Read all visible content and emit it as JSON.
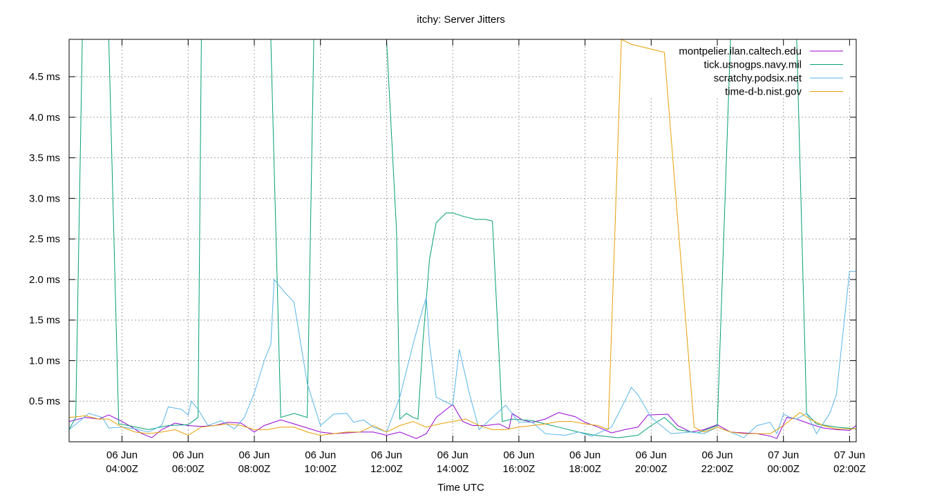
{
  "chart_data": {
    "type": "line",
    "title": "itchy: Server Jitters",
    "xlabel": "Time UTC",
    "ylabel": "",
    "x_unit": "hours (06 Jun 04:00Z = 4)",
    "xlim": [
      2.4,
      26.2
    ],
    "ylim": [
      0.0,
      4.96
    ],
    "y_ticks": [
      {
        "value": 0.5,
        "label": "0.5 ms"
      },
      {
        "value": 1.0,
        "label": "1.0 ms"
      },
      {
        "value": 1.5,
        "label": "1.5 ms"
      },
      {
        "value": 2.0,
        "label": "2.0 ms"
      },
      {
        "value": 2.5,
        "label": "2.5 ms"
      },
      {
        "value": 3.0,
        "label": "3.0 ms"
      },
      {
        "value": 3.5,
        "label": "3.5 ms"
      },
      {
        "value": 4.0,
        "label": "4.0 ms"
      },
      {
        "value": 4.5,
        "label": "4.5 ms"
      }
    ],
    "x_ticks": [
      {
        "value": 4,
        "line1": "06 Jun",
        "line2": "04:00Z"
      },
      {
        "value": 6,
        "line1": "06 Jun",
        "line2": "06:00Z"
      },
      {
        "value": 8,
        "line1": "06 Jun",
        "line2": "08:00Z"
      },
      {
        "value": 10,
        "line1": "06 Jun",
        "line2": "10:00Z"
      },
      {
        "value": 12,
        "line1": "06 Jun",
        "line2": "12:00Z"
      },
      {
        "value": 14,
        "line1": "06 Jun",
        "line2": "14:00Z"
      },
      {
        "value": 16,
        "line1": "06 Jun",
        "line2": "16:00Z"
      },
      {
        "value": 18,
        "line1": "06 Jun",
        "line2": "18:00Z"
      },
      {
        "value": 20,
        "line1": "06 Jun",
        "line2": "20:00Z"
      },
      {
        "value": 22,
        "line1": "06 Jun",
        "line2": "22:00Z"
      },
      {
        "value": 24,
        "line1": "07 Jun",
        "line2": "00:00Z"
      },
      {
        "value": 26,
        "line1": "07 Jun",
        "line2": "02:00Z"
      }
    ],
    "grid": true,
    "legend_position": "top-right",
    "series": [
      {
        "name": "montpelier.ilan.caltech.edu",
        "color": "#9400d3",
        "points": [
          [
            2.4,
            0.25
          ],
          [
            2.9,
            0.3
          ],
          [
            3.3,
            0.28
          ],
          [
            3.6,
            0.33
          ],
          [
            4.0,
            0.25
          ],
          [
            4.3,
            0.18
          ],
          [
            4.6,
            0.1
          ],
          [
            4.9,
            0.05
          ],
          [
            5.2,
            0.15
          ],
          [
            5.6,
            0.23
          ],
          [
            6.0,
            0.2
          ],
          [
            6.4,
            0.19
          ],
          [
            6.8,
            0.2
          ],
          [
            7.2,
            0.24
          ],
          [
            7.6,
            0.23
          ],
          [
            8.0,
            0.12
          ],
          [
            8.3,
            0.2
          ],
          [
            8.8,
            0.27
          ],
          [
            9.2,
            0.22
          ],
          [
            9.6,
            0.17
          ],
          [
            10.0,
            0.12
          ],
          [
            10.4,
            0.1
          ],
          [
            10.8,
            0.11
          ],
          [
            11.2,
            0.12
          ],
          [
            11.6,
            0.12
          ],
          [
            12.0,
            0.08
          ],
          [
            12.4,
            0.12
          ],
          [
            12.9,
            0.04
          ],
          [
            13.2,
            0.1
          ],
          [
            13.5,
            0.3
          ],
          [
            14.0,
            0.46
          ],
          [
            14.3,
            0.25
          ],
          [
            14.6,
            0.2
          ],
          [
            15.0,
            0.2
          ],
          [
            15.4,
            0.22
          ],
          [
            15.7,
            0.16
          ],
          [
            15.8,
            0.35
          ],
          [
            16.1,
            0.27
          ],
          [
            16.4,
            0.24
          ],
          [
            16.8,
            0.28
          ],
          [
            17.2,
            0.36
          ],
          [
            17.7,
            0.31
          ],
          [
            18.0,
            0.24
          ],
          [
            18.4,
            0.18
          ],
          [
            18.8,
            0.11
          ],
          [
            19.2,
            0.15
          ],
          [
            19.6,
            0.18
          ],
          [
            19.9,
            0.33
          ],
          [
            20.5,
            0.34
          ],
          [
            20.8,
            0.2
          ],
          [
            21.2,
            0.12
          ],
          [
            21.6,
            0.15
          ],
          [
            22.0,
            0.21
          ],
          [
            22.4,
            0.12
          ],
          [
            22.8,
            0.11
          ],
          [
            23.2,
            0.1
          ],
          [
            23.6,
            0.07
          ],
          [
            23.8,
            0.04
          ],
          [
            24.1,
            0.3
          ],
          [
            24.4,
            0.28
          ],
          [
            24.8,
            0.22
          ],
          [
            25.2,
            0.17
          ],
          [
            25.6,
            0.15
          ],
          [
            26.0,
            0.14
          ],
          [
            26.2,
            0.2
          ]
        ]
      },
      {
        "name": "tick.usnogps.navy.mil",
        "color": "#009e73",
        "points": [
          [
            2.4,
            0.15
          ],
          [
            2.6,
            0.3
          ],
          [
            2.8,
            4.96
          ],
          [
            3.6,
            4.96
          ],
          [
            3.9,
            0.22
          ],
          [
            4.2,
            0.2
          ],
          [
            4.8,
            0.15
          ],
          [
            5.4,
            0.2
          ],
          [
            6.0,
            0.21
          ],
          [
            6.3,
            0.3
          ],
          [
            6.4,
            4.96
          ],
          [
            8.5,
            4.96
          ],
          [
            8.8,
            0.3
          ],
          [
            9.2,
            0.35
          ],
          [
            9.6,
            0.3
          ],
          [
            9.8,
            4.96
          ],
          [
            12.0,
            4.96
          ],
          [
            12.3,
            2.6
          ],
          [
            12.4,
            0.28
          ],
          [
            12.6,
            0.35
          ],
          [
            12.8,
            0.3
          ],
          [
            12.95,
            0.28
          ],
          [
            13.1,
            1.25
          ],
          [
            13.3,
            2.25
          ],
          [
            13.5,
            2.7
          ],
          [
            13.8,
            2.82
          ],
          [
            14.0,
            2.82
          ],
          [
            14.3,
            2.78
          ],
          [
            14.7,
            2.74
          ],
          [
            15.0,
            2.74
          ],
          [
            15.2,
            2.72
          ],
          [
            15.5,
            0.25
          ],
          [
            15.8,
            0.28
          ],
          [
            16.4,
            0.26
          ],
          [
            16.8,
            0.22
          ],
          [
            17.2,
            0.18
          ],
          [
            17.8,
            0.12
          ],
          [
            18.3,
            0.08
          ],
          [
            19.0,
            0.05
          ],
          [
            19.6,
            0.08
          ],
          [
            20.0,
            0.2
          ],
          [
            20.4,
            0.3
          ],
          [
            20.8,
            0.15
          ],
          [
            21.4,
            0.11
          ],
          [
            22.0,
            0.2
          ],
          [
            22.4,
            4.96
          ],
          [
            24.4,
            4.96
          ],
          [
            24.7,
            0.35
          ],
          [
            25.0,
            0.22
          ],
          [
            25.6,
            0.18
          ],
          [
            26.2,
            0.16
          ]
        ]
      },
      {
        "name": "scratchy.podsix.net",
        "color": "#56b4e9",
        "points": [
          [
            2.4,
            0.15
          ],
          [
            2.7,
            0.25
          ],
          [
            3.0,
            0.35
          ],
          [
            3.4,
            0.3
          ],
          [
            3.6,
            0.17
          ],
          [
            4.0,
            0.18
          ],
          [
            4.4,
            0.16
          ],
          [
            4.8,
            0.12
          ],
          [
            5.2,
            0.2
          ],
          [
            5.4,
            0.43
          ],
          [
            5.8,
            0.4
          ],
          [
            6.0,
            0.33
          ],
          [
            6.1,
            0.5
          ],
          [
            6.3,
            0.4
          ],
          [
            6.6,
            0.2
          ],
          [
            7.0,
            0.26
          ],
          [
            7.4,
            0.16
          ],
          [
            7.7,
            0.3
          ],
          [
            8.0,
            0.6
          ],
          [
            8.3,
            1.0
          ],
          [
            8.5,
            1.2
          ],
          [
            8.6,
            2.0
          ],
          [
            8.9,
            1.85
          ],
          [
            9.2,
            1.72
          ],
          [
            9.6,
            0.72
          ],
          [
            10.0,
            0.2
          ],
          [
            10.4,
            0.34
          ],
          [
            10.8,
            0.35
          ],
          [
            11.0,
            0.24
          ],
          [
            11.3,
            0.27
          ],
          [
            11.6,
            0.18
          ],
          [
            12.0,
            0.12
          ],
          [
            12.4,
            0.55
          ],
          [
            12.8,
            1.2
          ],
          [
            13.1,
            1.65
          ],
          [
            13.2,
            1.78
          ],
          [
            13.3,
            1.2
          ],
          [
            13.5,
            0.55
          ],
          [
            14.0,
            0.45
          ],
          [
            14.2,
            1.14
          ],
          [
            14.5,
            0.6
          ],
          [
            14.8,
            0.15
          ],
          [
            15.2,
            0.3
          ],
          [
            15.6,
            0.45
          ],
          [
            16.0,
            0.24
          ],
          [
            16.4,
            0.24
          ],
          [
            16.8,
            0.1
          ],
          [
            17.4,
            0.08
          ],
          [
            17.8,
            0.12
          ],
          [
            18.2,
            0.07
          ],
          [
            18.8,
            0.18
          ],
          [
            19.2,
            0.5
          ],
          [
            19.4,
            0.67
          ],
          [
            19.6,
            0.58
          ],
          [
            20.0,
            0.3
          ],
          [
            20.6,
            0.1
          ],
          [
            21.2,
            0.12
          ],
          [
            21.6,
            0.1
          ],
          [
            22.0,
            0.18
          ],
          [
            22.4,
            0.12
          ],
          [
            22.8,
            0.05
          ],
          [
            23.2,
            0.2
          ],
          [
            23.6,
            0.24
          ],
          [
            23.8,
            0.1
          ],
          [
            24.0,
            0.34
          ],
          [
            24.2,
            0.3
          ],
          [
            24.4,
            0.28
          ],
          [
            24.7,
            0.35
          ],
          [
            25.0,
            0.1
          ],
          [
            25.4,
            0.35
          ],
          [
            25.6,
            0.58
          ],
          [
            26.0,
            2.1
          ],
          [
            26.2,
            2.1
          ]
        ]
      },
      {
        "name": "time-d-b.nist.gov",
        "color": "#e69f00",
        "points": [
          [
            2.4,
            0.3
          ],
          [
            2.9,
            0.32
          ],
          [
            3.3,
            0.28
          ],
          [
            3.6,
            0.28
          ],
          [
            4.0,
            0.18
          ],
          [
            4.4,
            0.12
          ],
          [
            4.8,
            0.1
          ],
          [
            5.2,
            0.12
          ],
          [
            5.6,
            0.15
          ],
          [
            6.0,
            0.08
          ],
          [
            6.4,
            0.18
          ],
          [
            6.8,
            0.2
          ],
          [
            7.2,
            0.22
          ],
          [
            7.6,
            0.2
          ],
          [
            8.0,
            0.15
          ],
          [
            8.4,
            0.15
          ],
          [
            8.8,
            0.18
          ],
          [
            9.2,
            0.18
          ],
          [
            9.6,
            0.12
          ],
          [
            10.0,
            0.08
          ],
          [
            10.4,
            0.1
          ],
          [
            10.8,
            0.12
          ],
          [
            11.2,
            0.12
          ],
          [
            11.6,
            0.2
          ],
          [
            12.0,
            0.12
          ],
          [
            12.4,
            0.2
          ],
          [
            12.8,
            0.25
          ],
          [
            13.2,
            0.18
          ],
          [
            13.6,
            0.22
          ],
          [
            14.0,
            0.25
          ],
          [
            14.4,
            0.28
          ],
          [
            14.8,
            0.2
          ],
          [
            15.2,
            0.15
          ],
          [
            15.6,
            0.15
          ],
          [
            16.0,
            0.18
          ],
          [
            16.4,
            0.2
          ],
          [
            16.8,
            0.22
          ],
          [
            17.2,
            0.25
          ],
          [
            17.6,
            0.25
          ],
          [
            18.0,
            0.22
          ],
          [
            18.4,
            0.2
          ],
          [
            18.7,
            0.15
          ],
          [
            19.1,
            4.96
          ],
          [
            19.4,
            4.9
          ],
          [
            20.2,
            4.82
          ],
          [
            20.4,
            4.8
          ],
          [
            21.3,
            0.18
          ],
          [
            21.6,
            0.12
          ],
          [
            22.0,
            0.18
          ],
          [
            22.4,
            0.12
          ],
          [
            22.8,
            0.1
          ],
          [
            23.2,
            0.1
          ],
          [
            23.6,
            0.1
          ],
          [
            24.0,
            0.2
          ],
          [
            24.5,
            0.36
          ],
          [
            24.8,
            0.28
          ],
          [
            25.2,
            0.2
          ],
          [
            25.6,
            0.16
          ],
          [
            26.2,
            0.16
          ]
        ]
      }
    ]
  }
}
